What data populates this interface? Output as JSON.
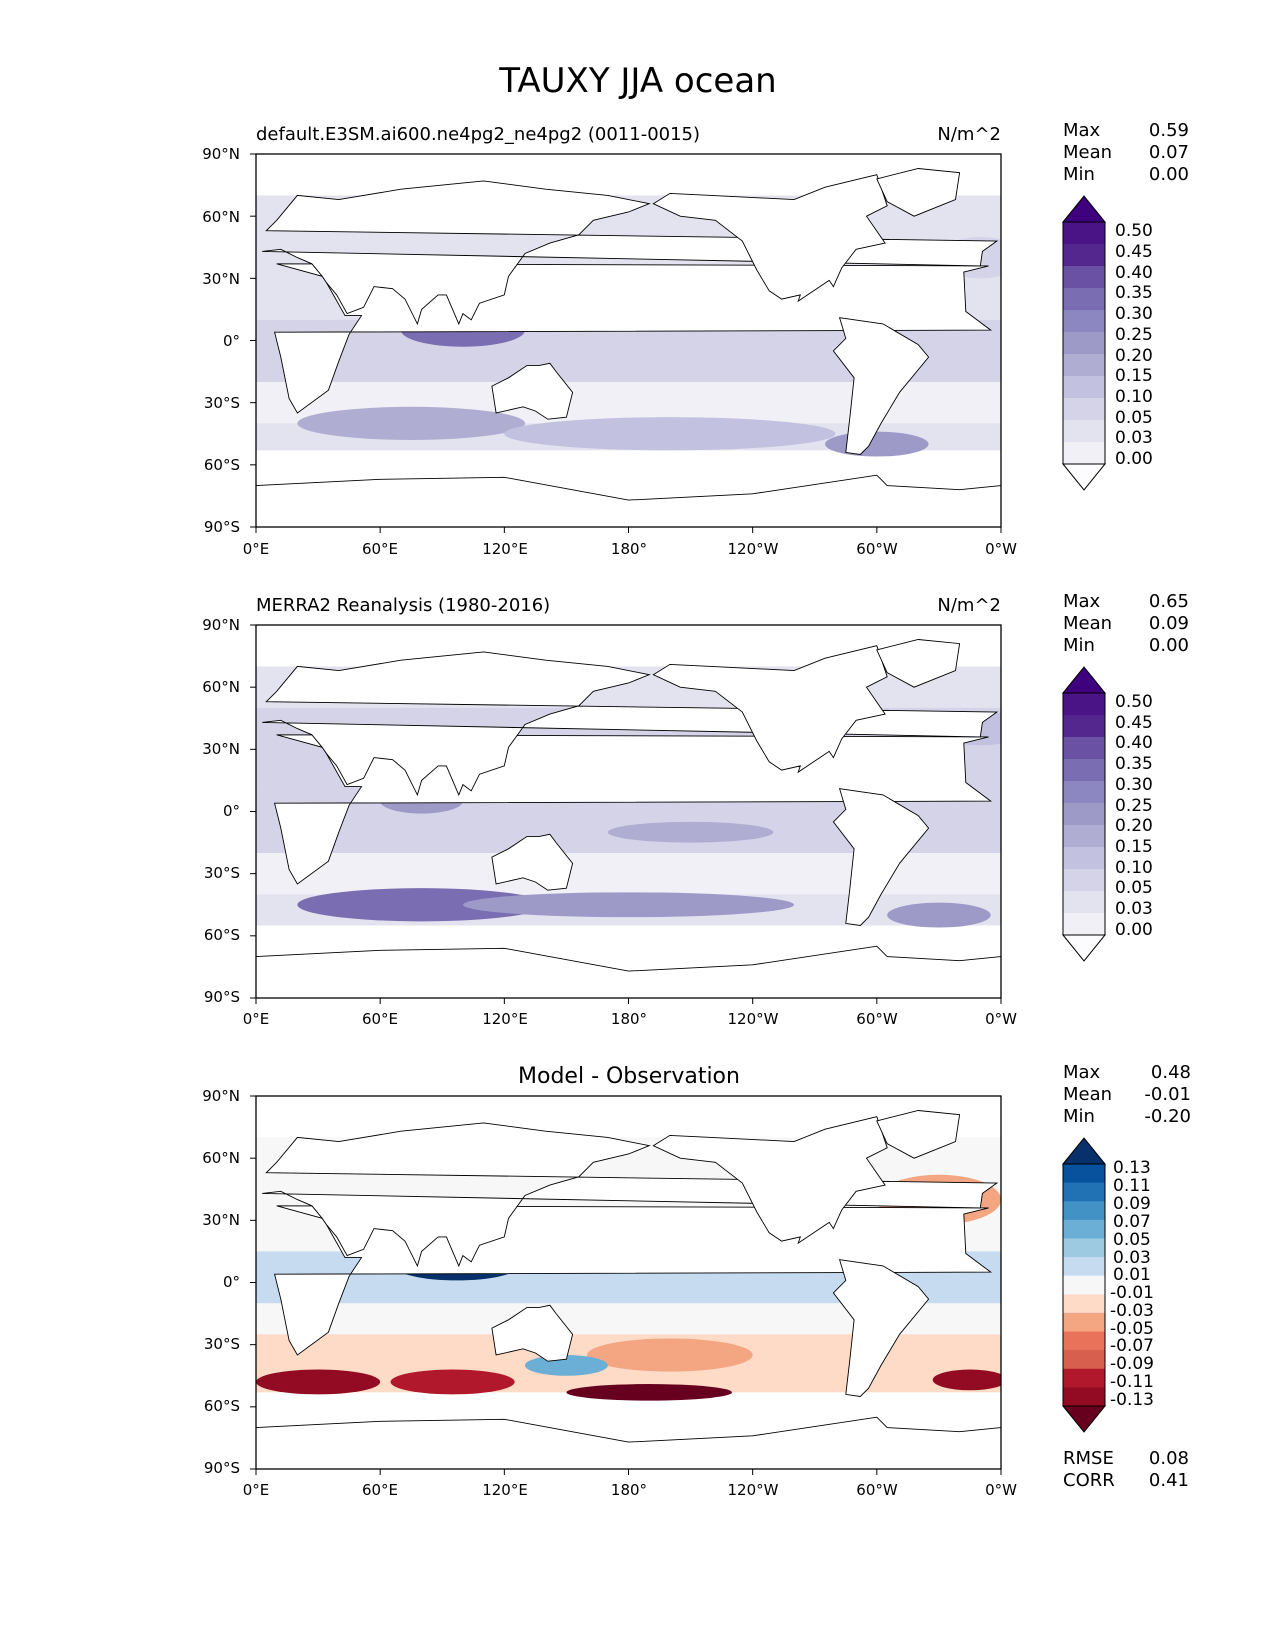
{
  "figure_title": "TAUXY JJA ocean",
  "chart_data": [
    {
      "type": "heatmap",
      "title": "default.E3SM.ai600.ne4pg2_ne4pg2 (0011-0015)",
      "units": "N/m^2",
      "stats": {
        "max_label": "Max",
        "max": "0.59",
        "mean_label": "Mean",
        "mean": "0.07",
        "min_label": "Min",
        "min": "0.00"
      },
      "x_ticks": [
        "0°E",
        "60°E",
        "120°E",
        "180°",
        "120°W",
        "60°W",
        "0°W"
      ],
      "y_ticks": [
        "90°N",
        "60°N",
        "30°N",
        "0°",
        "30°S",
        "60°S",
        "90°S"
      ],
      "xlim": [
        0,
        360
      ],
      "ylim": [
        -90,
        90
      ],
      "colorbar": {
        "labels": [
          "0.50",
          "0.45",
          "0.40",
          "0.35",
          "0.30",
          "0.25",
          "0.20",
          "0.15",
          "0.10",
          "0.05",
          "0.03",
          "0.00"
        ],
        "colors": [
          "#3f007d",
          "#4a1486",
          "#54278f",
          "#6a51a3",
          "#7b6db1",
          "#8c87c1",
          "#9e9ac8",
          "#b0add3",
          "#c2c1df",
          "#d4d3e8",
          "#e3e2ef",
          "#f0f0f6",
          "#fcfbfd"
        ]
      }
    },
    {
      "type": "heatmap",
      "title": "MERRA2 Reanalysis (1980-2016)",
      "units": "N/m^2",
      "stats": {
        "max_label": "Max",
        "max": "0.65",
        "mean_label": "Mean",
        "mean": "0.09",
        "min_label": "Min",
        "min": "0.00"
      },
      "x_ticks": [
        "0°E",
        "60°E",
        "120°E",
        "180°",
        "120°W",
        "60°W",
        "0°W"
      ],
      "y_ticks": [
        "90°N",
        "60°N",
        "30°N",
        "0°",
        "30°S",
        "60°S",
        "90°S"
      ],
      "xlim": [
        0,
        360
      ],
      "ylim": [
        -90,
        90
      ],
      "colorbar": {
        "labels": [
          "0.50",
          "0.45",
          "0.40",
          "0.35",
          "0.30",
          "0.25",
          "0.20",
          "0.15",
          "0.10",
          "0.05",
          "0.03",
          "0.00"
        ],
        "colors": [
          "#3f007d",
          "#4a1486",
          "#54278f",
          "#6a51a3",
          "#7b6db1",
          "#8c87c1",
          "#9e9ac8",
          "#b0add3",
          "#c2c1df",
          "#d4d3e8",
          "#e3e2ef",
          "#f0f0f6",
          "#fcfbfd"
        ]
      }
    },
    {
      "type": "heatmap",
      "title": "Model - Observation",
      "units": "",
      "stats": {
        "max_label": "Max",
        "max": "0.48",
        "mean_label": "Mean",
        "mean": "-0.01",
        "min_label": "Min",
        "min": "-0.20"
      },
      "metrics": {
        "rmse_label": "RMSE",
        "rmse": "0.08",
        "corr_label": "CORR",
        "corr": "0.41"
      },
      "x_ticks": [
        "0°E",
        "60°E",
        "120°E",
        "180°",
        "120°W",
        "60°W",
        "0°W"
      ],
      "y_ticks": [
        "90°N",
        "60°N",
        "30°N",
        "0°",
        "30°S",
        "60°S",
        "90°S"
      ],
      "xlim": [
        0,
        360
      ],
      "ylim": [
        -90,
        90
      ],
      "colorbar": {
        "labels": [
          "0.13",
          "0.11",
          "0.09",
          "0.07",
          "0.05",
          "0.03",
          "0.01",
          "-0.01",
          "-0.03",
          "-0.05",
          "-0.07",
          "-0.09",
          "-0.11",
          "-0.13"
        ],
        "colors": [
          "#08306b",
          "#08519c",
          "#2171b5",
          "#4292c6",
          "#6baed6",
          "#9ecae1",
          "#c6dbef",
          "#f7f7f7",
          "#fddbc7",
          "#f4a582",
          "#e8735a",
          "#d6604d",
          "#b2182b",
          "#930b22",
          "#67001f"
        ]
      }
    }
  ]
}
